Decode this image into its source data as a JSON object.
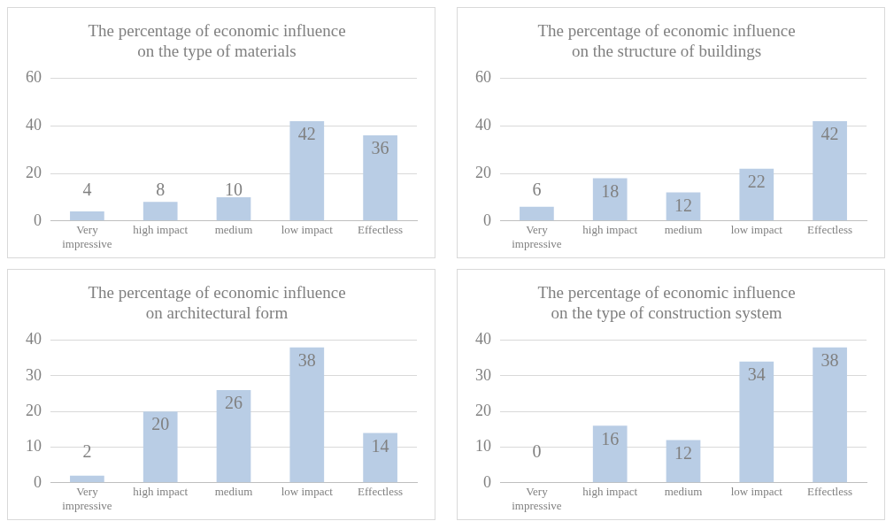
{
  "chart_data": [
    {
      "type": "bar",
      "title": "The percentage of economic influence\non the type of materials",
      "categories": [
        "Very impressive",
        "high impact",
        "medium",
        "low impact",
        "Effectless"
      ],
      "values": [
        4,
        8,
        10,
        42,
        36
      ],
      "color": "#b9cde5",
      "ylim": [
        0,
        60
      ],
      "yticks": [
        0,
        20,
        40,
        60
      ],
      "grid": "y",
      "data_labels": true,
      "legend": false
    },
    {
      "type": "bar",
      "title": "The percentage of economic influence\non the structure of buildings",
      "categories": [
        "Very impressive",
        "high impact",
        "medium",
        "low impact",
        "Effectless"
      ],
      "values": [
        6,
        18,
        12,
        22,
        42
      ],
      "color": "#b9cde5",
      "ylim": [
        0,
        60
      ],
      "yticks": [
        0,
        20,
        40,
        60
      ],
      "grid": "y",
      "data_labels": true,
      "legend": false
    },
    {
      "type": "bar",
      "title": "The percentage of economic influence\non architectural form",
      "categories": [
        "Very impressive",
        "high impact",
        "medium",
        "low impact",
        "Effectless"
      ],
      "values": [
        2,
        20,
        26,
        38,
        14
      ],
      "color": "#b9cde5",
      "ylim": [
        0,
        40
      ],
      "yticks": [
        0,
        10,
        20,
        30,
        40
      ],
      "grid": "y",
      "data_labels": true,
      "legend": false
    },
    {
      "type": "bar",
      "title": "The percentage of economic influence\non the type of construction system",
      "categories": [
        "Very impressive",
        "high impact",
        "medium",
        "low impact",
        "Effectless"
      ],
      "values": [
        0,
        16,
        12,
        34,
        38
      ],
      "color": "#b9cde5",
      "ylim": [
        0,
        40
      ],
      "yticks": [
        0,
        10,
        20,
        30,
        40
      ],
      "grid": "y",
      "data_labels": true,
      "legend": false
    }
  ]
}
